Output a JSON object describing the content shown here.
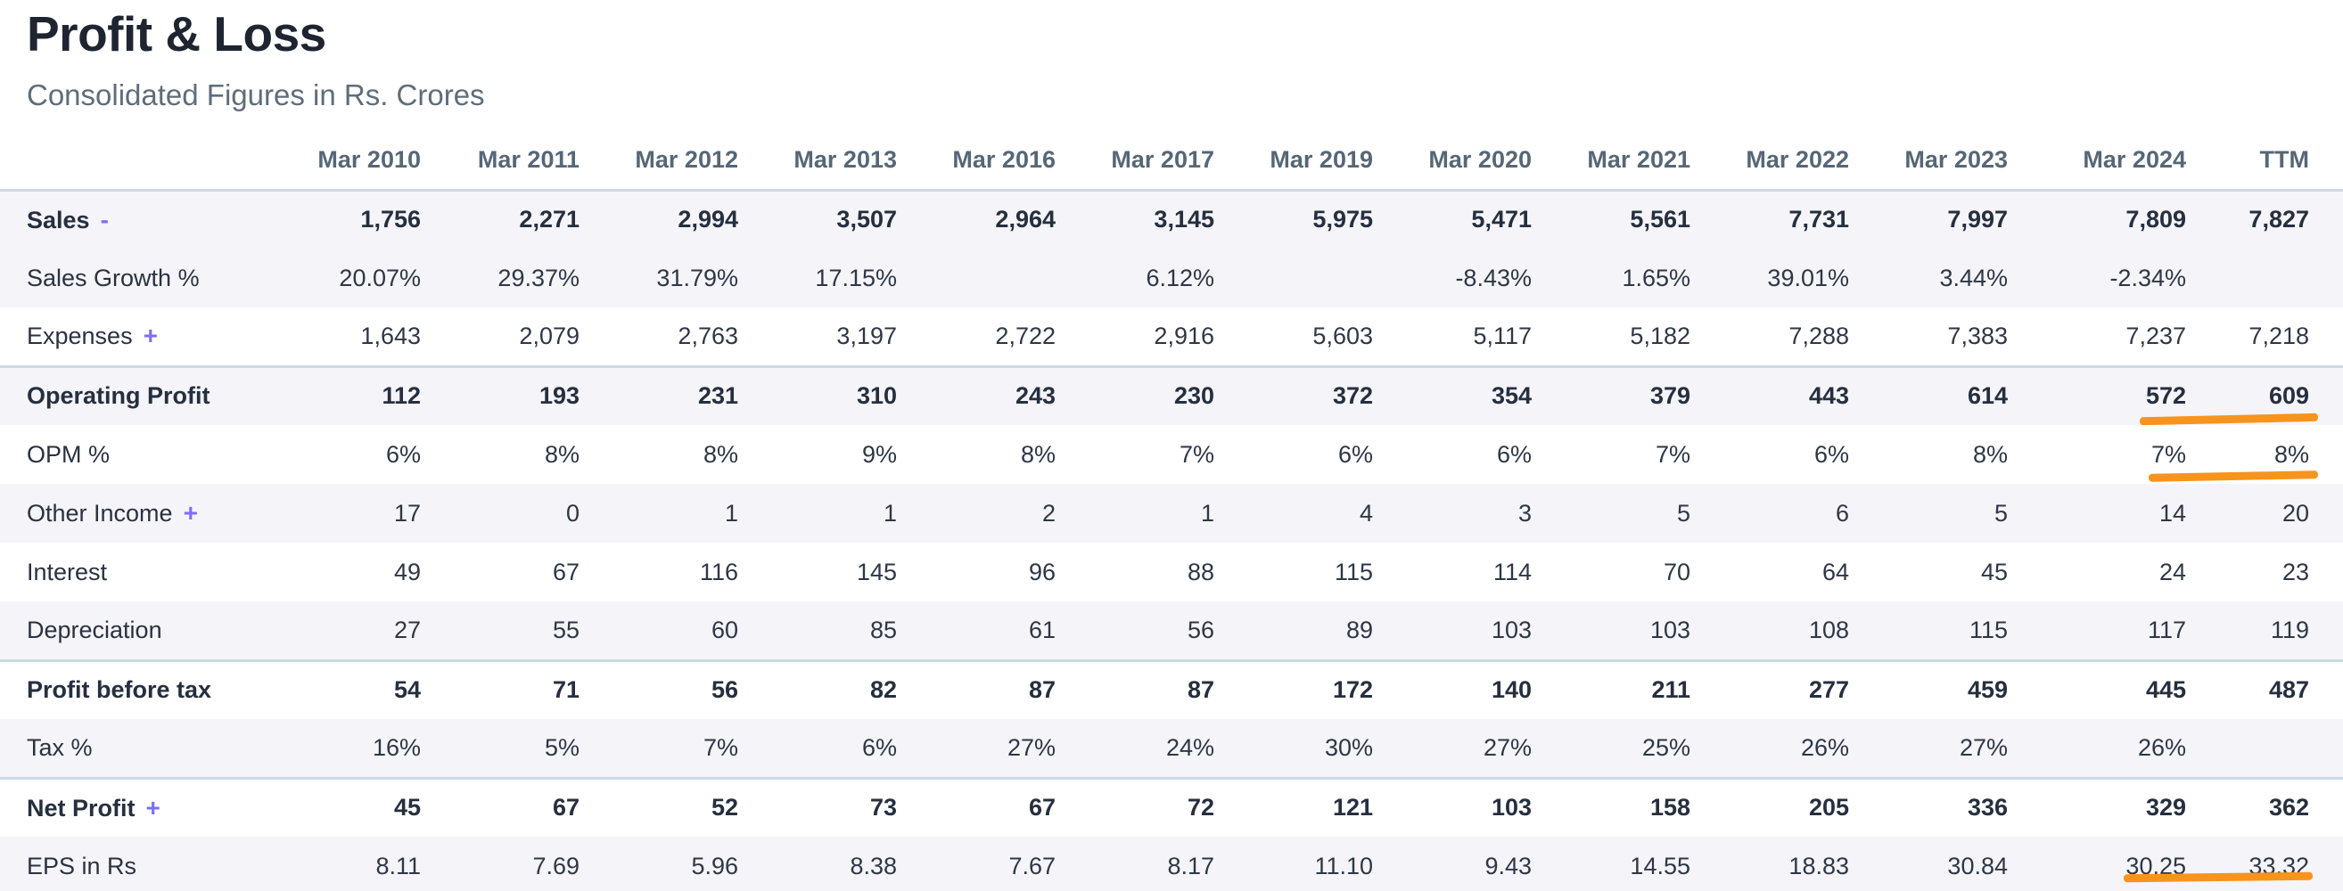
{
  "header": {
    "title": "Profit & Loss",
    "subtitle": "Consolidated Figures in Rs. Crores"
  },
  "colors": {
    "accent_purple": "#7c6ff2",
    "highlight_orange": "#f7941d",
    "row_stripe": "#f4f4f9",
    "section_border": "#cdd9e3",
    "title_text": "#1e2430",
    "subtitle_text": "#5f6d7a",
    "header_text": "#566776",
    "body_text": "#2e3745"
  },
  "table": {
    "columns": [
      "Mar 2010",
      "Mar 2011",
      "Mar 2012",
      "Mar 2013",
      "Mar 2016",
      "Mar 2017",
      "Mar 2019",
      "Mar 2020",
      "Mar 2021",
      "Mar 2022",
      "Mar 2023",
      "Mar 2024",
      "TTM"
    ],
    "rows": [
      {
        "label": "Sales",
        "toggle": "-",
        "bold": true,
        "striped": true,
        "section_start": false,
        "values": [
          "1,756",
          "2,271",
          "2,994",
          "3,507",
          "2,964",
          "3,145",
          "5,975",
          "5,471",
          "5,561",
          "7,731",
          "7,997",
          "7,809",
          "7,827"
        ]
      },
      {
        "label": "Sales Growth %",
        "toggle": "",
        "bold": false,
        "striped": true,
        "section_start": false,
        "values": [
          "20.07%",
          "29.37%",
          "31.79%",
          "17.15%",
          "",
          "6.12%",
          "",
          "-8.43%",
          "1.65%",
          "39.01%",
          "3.44%",
          "-2.34%",
          ""
        ]
      },
      {
        "label": "Expenses",
        "toggle": "+",
        "bold": false,
        "striped": false,
        "section_start": false,
        "values": [
          "1,643",
          "2,079",
          "2,763",
          "3,197",
          "2,722",
          "2,916",
          "5,603",
          "5,117",
          "5,182",
          "7,288",
          "7,383",
          "7,237",
          "7,218"
        ]
      },
      {
        "label": "Operating Profit",
        "toggle": "",
        "bold": true,
        "striped": true,
        "section_start": true,
        "values": [
          "112",
          "193",
          "231",
          "310",
          "243",
          "230",
          "372",
          "354",
          "379",
          "443",
          "614",
          "572",
          "609"
        ]
      },
      {
        "label": "OPM %",
        "toggle": "",
        "bold": false,
        "striped": false,
        "section_start": false,
        "values": [
          "6%",
          "8%",
          "8%",
          "9%",
          "8%",
          "7%",
          "6%",
          "6%",
          "7%",
          "6%",
          "8%",
          "7%",
          "8%"
        ]
      },
      {
        "label": "Other Income",
        "toggle": "+",
        "bold": false,
        "striped": true,
        "section_start": false,
        "values": [
          "17",
          "0",
          "1",
          "1",
          "2",
          "1",
          "4",
          "3",
          "5",
          "6",
          "5",
          "14",
          "20"
        ]
      },
      {
        "label": "Interest",
        "toggle": "",
        "bold": false,
        "striped": false,
        "section_start": false,
        "values": [
          "49",
          "67",
          "116",
          "145",
          "96",
          "88",
          "115",
          "114",
          "70",
          "64",
          "45",
          "24",
          "23"
        ]
      },
      {
        "label": "Depreciation",
        "toggle": "",
        "bold": false,
        "striped": true,
        "section_start": false,
        "values": [
          "27",
          "55",
          "60",
          "85",
          "61",
          "56",
          "89",
          "103",
          "103",
          "108",
          "115",
          "117",
          "119"
        ]
      },
      {
        "label": "Profit before tax",
        "toggle": "",
        "bold": true,
        "striped": false,
        "section_start": true,
        "values": [
          "54",
          "71",
          "56",
          "82",
          "87",
          "87",
          "172",
          "140",
          "211",
          "277",
          "459",
          "445",
          "487"
        ]
      },
      {
        "label": "Tax %",
        "toggle": "",
        "bold": false,
        "striped": true,
        "section_start": false,
        "values": [
          "16%",
          "5%",
          "7%",
          "6%",
          "27%",
          "24%",
          "30%",
          "27%",
          "25%",
          "26%",
          "27%",
          "26%",
          ""
        ]
      },
      {
        "label": "Net Profit",
        "toggle": "+",
        "bold": true,
        "striped": false,
        "section_start": true,
        "values": [
          "45",
          "67",
          "52",
          "73",
          "67",
          "72",
          "121",
          "103",
          "158",
          "205",
          "336",
          "329",
          "362"
        ]
      },
      {
        "label": "EPS in Rs",
        "toggle": "",
        "bold": false,
        "striped": true,
        "section_start": false,
        "values": [
          "8.11",
          "7.69",
          "5.96",
          "8.38",
          "7.67",
          "8.17",
          "11.10",
          "9.43",
          "14.55",
          "18.83",
          "30.84",
          "30.25",
          "33.32"
        ]
      }
    ]
  },
  "annotations": [
    {
      "name": "highlight-underline-operating-profit",
      "row": "Operating Profit",
      "columns": [
        "Mar 2024",
        "TTM"
      ]
    },
    {
      "name": "highlight-underline-opm",
      "row": "OPM %",
      "columns": [
        "Mar 2024",
        "TTM"
      ]
    },
    {
      "name": "highlight-underline-eps",
      "row": "EPS in Rs",
      "columns": [
        "Mar 2024",
        "TTM"
      ]
    }
  ]
}
